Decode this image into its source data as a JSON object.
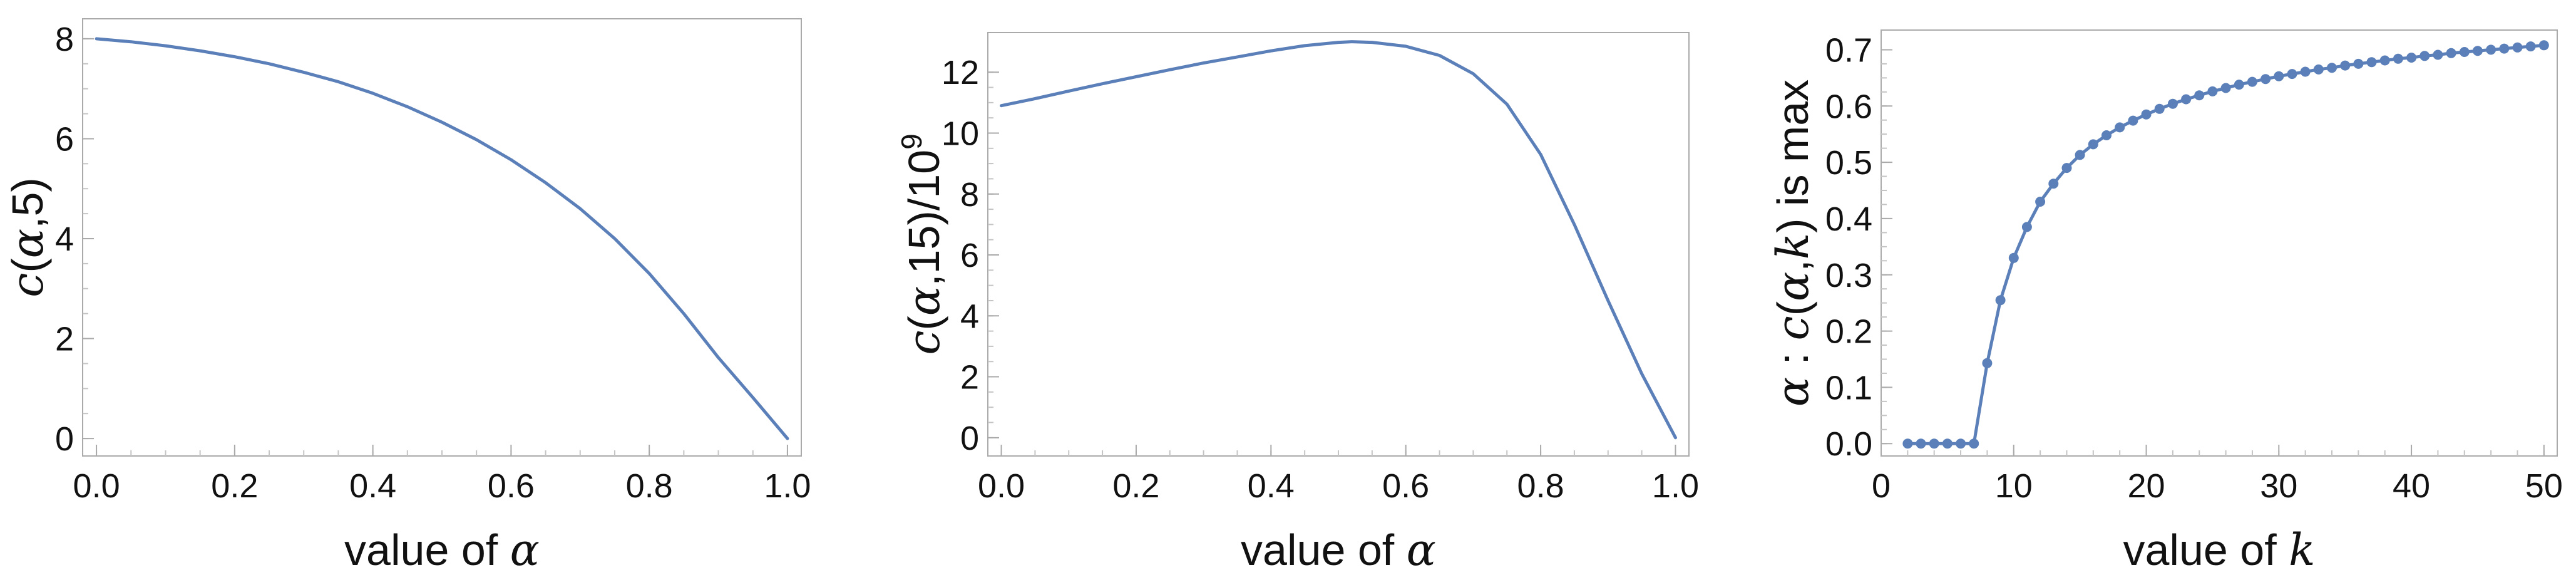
{
  "colors": {
    "series": "#5b7fb8"
  },
  "chart_data": [
    {
      "type": "line",
      "title": "",
      "xlabel": "value of α",
      "ylabel": "c(α,5)",
      "xlim": [
        -0.02,
        1.02
      ],
      "ylim": [
        -0.35,
        8.4
      ],
      "xticks": [
        "0.0",
        "0.2",
        "0.4",
        "0.6",
        "0.8",
        "1.0"
      ],
      "yticks": [
        "0",
        "2",
        "4",
        "6",
        "8"
      ],
      "grid": false,
      "series": [
        {
          "x": [
            0.0,
            0.05,
            0.1,
            0.15,
            0.2,
            0.25,
            0.3,
            0.35,
            0.4,
            0.45,
            0.5,
            0.55,
            0.6,
            0.65,
            0.7,
            0.75,
            0.8,
            0.85,
            0.9,
            0.95,
            1.0
          ],
          "y": [
            8.0,
            7.94,
            7.86,
            7.76,
            7.64,
            7.5,
            7.33,
            7.14,
            6.91,
            6.64,
            6.33,
            5.98,
            5.58,
            5.12,
            4.6,
            4.0,
            3.3,
            2.5,
            1.62,
            0.82,
            0.0
          ]
        }
      ]
    },
    {
      "type": "line",
      "title": "",
      "xlabel": "value of α",
      "ylabel": "c(α,15)/10⁹",
      "xlim": [
        -0.02,
        1.02
      ],
      "ylim": [
        -0.6,
        13.3
      ],
      "xticks": [
        "0.0",
        "0.2",
        "0.4",
        "0.6",
        "0.8",
        "1.0"
      ],
      "yticks": [
        "0",
        "2",
        "4",
        "6",
        "8",
        "10",
        "12"
      ],
      "grid": false,
      "series": [
        {
          "x": [
            0.0,
            0.05,
            0.1,
            0.15,
            0.2,
            0.25,
            0.3,
            0.35,
            0.4,
            0.45,
            0.5,
            0.52,
            0.55,
            0.6,
            0.65,
            0.7,
            0.75,
            0.8,
            0.85,
            0.9,
            0.95,
            1.0
          ],
          "y": [
            10.9,
            11.13,
            11.38,
            11.62,
            11.85,
            12.08,
            12.3,
            12.5,
            12.7,
            12.87,
            12.98,
            13.0,
            12.98,
            12.85,
            12.55,
            11.95,
            10.95,
            9.3,
            7.0,
            4.5,
            2.1,
            0.0
          ]
        }
      ]
    },
    {
      "type": "line",
      "title": "",
      "xlabel": "value of k",
      "ylabel": "α : c(α,k) is max",
      "xlim": [
        0,
        51
      ],
      "ylim": [
        -0.022,
        0.735
      ],
      "xticks": [
        "0",
        "10",
        "20",
        "30",
        "40",
        "50"
      ],
      "yticks": [
        "0.0",
        "0.1",
        "0.2",
        "0.3",
        "0.4",
        "0.5",
        "0.6",
        "0.7"
      ],
      "grid": false,
      "markers": true,
      "series": [
        {
          "x": [
            2,
            3,
            4,
            5,
            6,
            7,
            8,
            9,
            10,
            11,
            12,
            13,
            14,
            15,
            16,
            17,
            18,
            19,
            20,
            21,
            22,
            23,
            24,
            25,
            26,
            27,
            28,
            29,
            30,
            31,
            32,
            33,
            34,
            35,
            36,
            37,
            38,
            39,
            40,
            41,
            42,
            43,
            44,
            45,
            46,
            47,
            48,
            49,
            50
          ],
          "y": [
            0.0,
            0.0,
            0.0,
            0.0,
            0.0,
            0.0,
            0.143,
            0.255,
            0.33,
            0.385,
            0.43,
            0.462,
            0.49,
            0.513,
            0.532,
            0.548,
            0.562,
            0.574,
            0.585,
            0.595,
            0.604,
            0.612,
            0.619,
            0.626,
            0.632,
            0.638,
            0.643,
            0.648,
            0.653,
            0.657,
            0.661,
            0.665,
            0.668,
            0.672,
            0.675,
            0.678,
            0.681,
            0.684,
            0.686,
            0.689,
            0.691,
            0.694,
            0.696,
            0.698,
            0.7,
            0.702,
            0.704,
            0.706,
            0.708
          ]
        }
      ]
    }
  ]
}
